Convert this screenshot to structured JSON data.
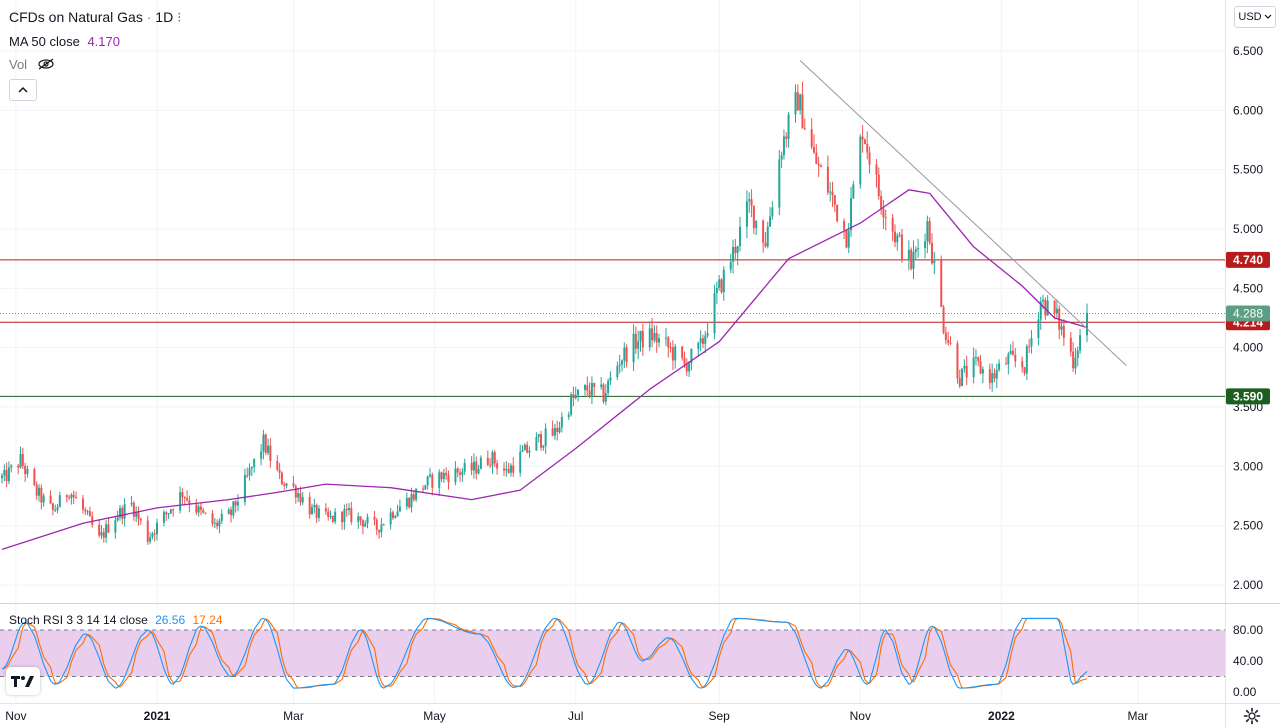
{
  "header": {
    "symbol": "CFDs on Natural Gas",
    "sep": "·",
    "interval": "1D",
    "ma_label": "MA 50 close",
    "ma_value": "4.170",
    "vol_label": "Vol",
    "stoch_label": "Stoch RSI 3 3 14 14 close",
    "stoch_k": "26.56",
    "stoch_d": "17.24"
  },
  "toolbar": {
    "currency": "USD"
  },
  "colors": {
    "up": "#26a69a",
    "down": "#ef5350",
    "ma": "#9c27b0",
    "resistance": "#b71c1c",
    "support": "#1b5e20",
    "stoch_k": "#2196f3",
    "stoch_d": "#ff6d00",
    "stoch_band": "#e1bee7",
    "trend": "#9598a1",
    "current": "#5b9e84"
  },
  "chart_data": [
    {
      "type": "candlestick",
      "title": "CFDs on Natural Gas · 1D",
      "yaxis_ticks": [
        "6.500",
        "6.000",
        "5.500",
        "5.000",
        "4.500",
        "4.000",
        "3.500",
        "3.000",
        "2.500",
        "2.000"
      ],
      "xaxis_ticks": [
        "Nov",
        "2021",
        "Mar",
        "May",
        "Jul",
        "Sep",
        "Nov",
        "2022",
        "Mar"
      ],
      "ylim": [
        1.9,
        6.75
      ],
      "anchors": [
        {
          "date": "2020-10-27",
          "price": 2.9
        },
        {
          "date": "2020-11-03",
          "price": 3.05
        },
        {
          "date": "2020-11-09",
          "price": 2.8
        },
        {
          "date": "2020-11-17",
          "price": 2.62
        },
        {
          "date": "2020-11-24",
          "price": 2.8
        },
        {
          "date": "2020-12-01",
          "price": 2.6
        },
        {
          "date": "2020-12-07",
          "price": 2.38
        },
        {
          "date": "2020-12-14",
          "price": 2.58
        },
        {
          "date": "2020-12-21",
          "price": 2.68
        },
        {
          "date": "2020-12-28",
          "price": 2.4
        },
        {
          "date": "2021-01-05",
          "price": 2.6
        },
        {
          "date": "2021-01-12",
          "price": 2.78
        },
        {
          "date": "2021-01-19",
          "price": 2.62
        },
        {
          "date": "2021-01-26",
          "price": 2.5
        },
        {
          "date": "2021-02-02",
          "price": 2.6
        },
        {
          "date": "2021-02-09",
          "price": 2.9
        },
        {
          "date": "2021-02-16",
          "price": 3.2
        },
        {
          "date": "2021-02-23",
          "price": 2.9
        },
        {
          "date": "2021-03-02",
          "price": 2.8
        },
        {
          "date": "2021-03-09",
          "price": 2.62
        },
        {
          "date": "2021-03-16",
          "price": 2.55
        },
        {
          "date": "2021-03-23",
          "price": 2.6
        },
        {
          "date": "2021-03-30",
          "price": 2.55
        },
        {
          "date": "2021-04-06",
          "price": 2.48
        },
        {
          "date": "2021-04-13",
          "price": 2.62
        },
        {
          "date": "2021-04-20",
          "price": 2.72
        },
        {
          "date": "2021-04-27",
          "price": 2.85
        },
        {
          "date": "2021-05-04",
          "price": 2.92
        },
        {
          "date": "2021-05-11",
          "price": 2.95
        },
        {
          "date": "2021-05-18",
          "price": 2.98
        },
        {
          "date": "2021-05-25",
          "price": 3.08
        },
        {
          "date": "2021-06-01",
          "price": 2.95
        },
        {
          "date": "2021-06-08",
          "price": 3.1
        },
        {
          "date": "2021-06-15",
          "price": 3.22
        },
        {
          "date": "2021-06-22",
          "price": 3.28
        },
        {
          "date": "2021-06-29",
          "price": 3.55
        },
        {
          "date": "2021-07-06",
          "price": 3.65
        },
        {
          "date": "2021-07-13",
          "price": 3.6
        },
        {
          "date": "2021-07-20",
          "price": 3.9
        },
        {
          "date": "2021-07-27",
          "price": 4.05
        },
        {
          "date": "2021-08-03",
          "price": 4.1
        },
        {
          "date": "2021-08-10",
          "price": 4.0
        },
        {
          "date": "2021-08-17",
          "price": 3.85
        },
        {
          "date": "2021-08-24",
          "price": 4.0
        },
        {
          "date": "2021-08-31",
          "price": 4.45
        },
        {
          "date": "2021-09-07",
          "price": 4.8
        },
        {
          "date": "2021-09-14",
          "price": 5.2
        },
        {
          "date": "2021-09-21",
          "price": 4.9
        },
        {
          "date": "2021-09-28",
          "price": 5.7
        },
        {
          "date": "2021-10-05",
          "price": 6.1
        },
        {
          "date": "2021-10-12",
          "price": 5.6
        },
        {
          "date": "2021-10-19",
          "price": 5.3
        },
        {
          "date": "2021-10-26",
          "price": 4.95
        },
        {
          "date": "2021-11-02",
          "price": 5.85
        },
        {
          "date": "2021-11-09",
          "price": 5.3
        },
        {
          "date": "2021-11-16",
          "price": 4.95
        },
        {
          "date": "2021-11-23",
          "price": 4.7
        },
        {
          "date": "2021-11-30",
          "price": 5.05
        },
        {
          "date": "2021-12-07",
          "price": 4.2
        },
        {
          "date": "2021-12-14",
          "price": 3.75
        },
        {
          "date": "2021-12-21",
          "price": 3.85
        },
        {
          "date": "2021-12-28",
          "price": 3.75
        },
        {
          "date": "2022-01-04",
          "price": 3.9
        },
        {
          "date": "2022-01-11",
          "price": 3.85
        },
        {
          "date": "2022-01-18",
          "price": 4.4
        },
        {
          "date": "2022-01-25",
          "price": 4.25
        },
        {
          "date": "2022-02-01",
          "price": 3.9
        },
        {
          "date": "2022-02-07",
          "price": 4.29
        }
      ],
      "ma50": [
        {
          "date": "2020-10-26",
          "value": 2.3
        },
        {
          "date": "2020-11-30",
          "value": 2.52
        },
        {
          "date": "2021-01-01",
          "value": 2.65
        },
        {
          "date": "2021-02-01",
          "value": 2.72
        },
        {
          "date": "2021-02-22",
          "value": 2.78
        },
        {
          "date": "2021-03-15",
          "value": 2.85
        },
        {
          "date": "2021-04-12",
          "value": 2.82
        },
        {
          "date": "2021-05-17",
          "value": 2.72
        },
        {
          "date": "2021-06-07",
          "value": 2.8
        },
        {
          "date": "2021-07-01",
          "value": 3.15
        },
        {
          "date": "2021-08-02",
          "value": 3.65
        },
        {
          "date": "2021-09-01",
          "value": 4.05
        },
        {
          "date": "2021-10-01",
          "value": 4.75
        },
        {
          "date": "2021-11-01",
          "value": 5.05
        },
        {
          "date": "2021-11-22",
          "value": 5.33
        },
        {
          "date": "2021-12-01",
          "value": 5.3
        },
        {
          "date": "2021-12-20",
          "value": 4.85
        },
        {
          "date": "2022-01-10",
          "value": 4.52
        },
        {
          "date": "2022-01-24",
          "value": 4.25
        },
        {
          "date": "2022-02-07",
          "value": 4.17
        }
      ],
      "horizontal_levels": [
        {
          "value": 4.74,
          "label": "4.740",
          "role": "resistance"
        },
        {
          "value": 4.214,
          "label": "4.214",
          "role": "resistance"
        },
        {
          "value": 3.59,
          "label": "3.590",
          "role": "support"
        }
      ],
      "current_price": {
        "value": 4.288,
        "label": "4.288"
      },
      "trendline": {
        "from": {
          "date": "2021-10-06",
          "price": 6.42
        },
        "to": {
          "date": "2022-02-24",
          "price": 3.85
        }
      }
    },
    {
      "type": "line",
      "title": "Stoch RSI 3 3 14 14 close",
      "yaxis_ticks": [
        "80.00",
        "40.00",
        "0.00"
      ],
      "bands": [
        20,
        80
      ],
      "series": [
        {
          "name": "K",
          "last": 26.56
        },
        {
          "name": "D",
          "last": 17.24
        }
      ],
      "k_turning_points": [
        {
          "date": "2020-10-26",
          "value": 30
        },
        {
          "date": "2020-11-05",
          "value": 90
        },
        {
          "date": "2020-11-18",
          "value": 10
        },
        {
          "date": "2020-12-01",
          "value": 75
        },
        {
          "date": "2020-12-14",
          "value": 5
        },
        {
          "date": "2020-12-28",
          "value": 80
        },
        {
          "date": "2021-01-08",
          "value": 10
        },
        {
          "date": "2021-01-20",
          "value": 85
        },
        {
          "date": "2021-02-02",
          "value": 20
        },
        {
          "date": "2021-02-16",
          "value": 95
        },
        {
          "date": "2021-03-01",
          "value": 5
        },
        {
          "date": "2021-03-18",
          "value": 10
        },
        {
          "date": "2021-03-30",
          "value": 80
        },
        {
          "date": "2021-04-09",
          "value": 5
        },
        {
          "date": "2021-04-28",
          "value": 95
        },
        {
          "date": "2021-05-20",
          "value": 75
        },
        {
          "date": "2021-06-05",
          "value": 5
        },
        {
          "date": "2021-06-22",
          "value": 95
        },
        {
          "date": "2021-07-06",
          "value": 10
        },
        {
          "date": "2021-07-20",
          "value": 90
        },
        {
          "date": "2021-07-30",
          "value": 40
        },
        {
          "date": "2021-08-10",
          "value": 70
        },
        {
          "date": "2021-08-24",
          "value": 5
        },
        {
          "date": "2021-09-08",
          "value": 95
        },
        {
          "date": "2021-09-30",
          "value": 90
        },
        {
          "date": "2021-10-15",
          "value": 5
        },
        {
          "date": "2021-10-26",
          "value": 55
        },
        {
          "date": "2021-11-04",
          "value": 10
        },
        {
          "date": "2021-11-12",
          "value": 80
        },
        {
          "date": "2021-11-22",
          "value": 10
        },
        {
          "date": "2021-12-02",
          "value": 85
        },
        {
          "date": "2021-12-14",
          "value": 5
        },
        {
          "date": "2021-12-30",
          "value": 10
        },
        {
          "date": "2022-01-10",
          "value": 95
        },
        {
          "date": "2022-01-25",
          "value": 95
        },
        {
          "date": "2022-02-01",
          "value": 10
        },
        {
          "date": "2022-02-07",
          "value": 26.56
        }
      ]
    }
  ]
}
